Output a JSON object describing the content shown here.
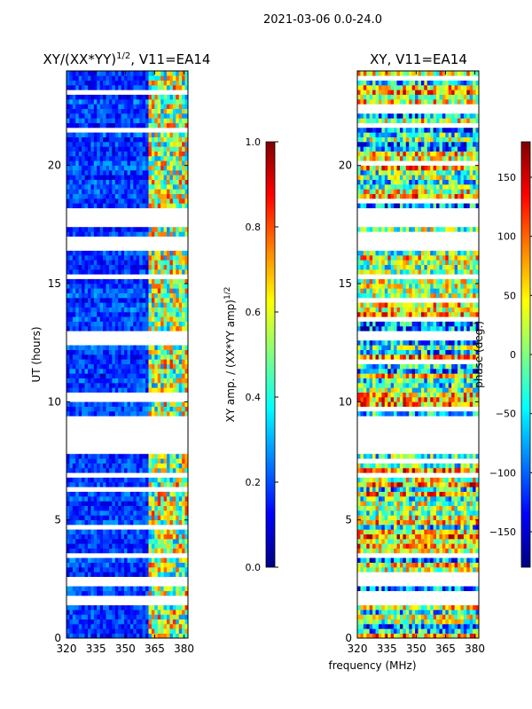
{
  "suptitle": "2021-03-06 0.0-24.0",
  "xlabel": "frequency (MHz)",
  "colors": {
    "jet": [
      "#000080",
      "#0000ff",
      "#0080ff",
      "#00ffff",
      "#80ff80",
      "#ffff00",
      "#ff8000",
      "#ff0000",
      "#800000"
    ],
    "gap": "#ffffff"
  },
  "chart_data": [
    {
      "type": "heatmap",
      "title_prefix": "XY/(XX*YY)",
      "title_exponent": "1/2",
      "title_suffix": ", V11=EA14",
      "ylabel": "UT (hours)",
      "xlim": [
        320,
        382
      ],
      "ylim": [
        0,
        24
      ],
      "x_ticks": [
        320,
        335,
        350,
        365,
        380
      ],
      "y_ticks": [
        0,
        5,
        10,
        15,
        20
      ],
      "colorbar": {
        "label_prefix": "XY amp. / (XX*YY amp)",
        "label_exponent": "1/2",
        "range": [
          0.0,
          1.0
        ],
        "ticks": [
          "0.0",
          "0.2",
          "0.4",
          "0.6",
          "0.8",
          "1.0"
        ]
      },
      "bright_band_mhz": [
        362,
        382
      ],
      "flagged_hours": [
        [
          7.8,
          9.2
        ],
        [
          16.5,
          17.0
        ],
        [
          17.5,
          18.2
        ],
        [
          12.7,
          12.9
        ],
        [
          15.2,
          15.3
        ],
        [
          3.4,
          3.6
        ],
        [
          1.5,
          1.8
        ],
        [
          2.3,
          2.5
        ]
      ]
    },
    {
      "type": "heatmap",
      "title": "XY, V11=EA14",
      "ylabel": "",
      "xlim": [
        320,
        382
      ],
      "ylim": [
        0,
        24
      ],
      "x_ticks": [
        320,
        335,
        350,
        365,
        380
      ],
      "y_ticks": [
        0,
        5,
        10,
        15,
        20
      ],
      "colorbar": {
        "label": "phase (deg.)",
        "range": [
          -180,
          180
        ],
        "ticks": [
          "−150",
          "−100",
          "−50",
          "0",
          "50",
          "100",
          "150"
        ]
      },
      "flagged_hours": [
        [
          7.8,
          9.2
        ],
        [
          16.5,
          17.0
        ],
        [
          17.5,
          18.2
        ],
        [
          12.7,
          12.9
        ],
        [
          15.2,
          15.3
        ],
        [
          3.4,
          3.6
        ],
        [
          1.5,
          1.8
        ],
        [
          2.3,
          2.5
        ]
      ]
    }
  ]
}
